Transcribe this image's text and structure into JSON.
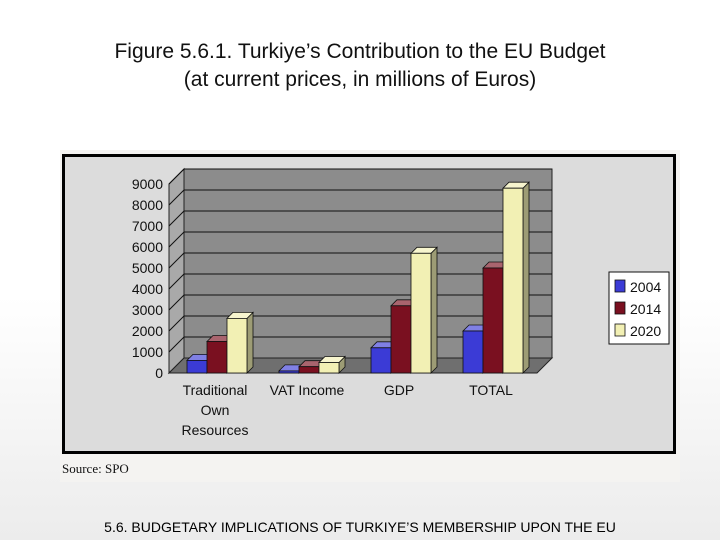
{
  "slide": {
    "title_line1": "Figure 5.6.1. Turkiye’s Contribution to the EU Budget",
    "title_line2": "(at current prices, in millions of Euros)",
    "source": "Source: SPO",
    "footer": "5.6. BUDGETARY IMPLICATIONS OF TURKIYE’S MEMBERSHIP UPON THE EU"
  },
  "chart_data": {
    "type": "bar",
    "categories": [
      [
        "Traditional",
        "Own",
        "Resources"
      ],
      [
        "VAT Income"
      ],
      [
        "GDP"
      ],
      [
        "TOTAL"
      ]
    ],
    "series": [
      {
        "name": "2004",
        "values": [
          600,
          100,
          1200,
          2000
        ],
        "color": "#3b3bd6"
      },
      {
        "name": "2014",
        "values": [
          1500,
          300,
          3200,
          5000
        ],
        "color": "#7a1020"
      },
      {
        "name": "2020",
        "values": [
          2600,
          500,
          5700,
          8800
        ],
        "color": "#f2f0b4"
      }
    ],
    "ylim": [
      0,
      9000
    ],
    "yticks": [
      0,
      1000,
      2000,
      3000,
      4000,
      5000,
      6000,
      7000,
      8000,
      9000
    ],
    "grid": true,
    "legend": "right",
    "colors": {
      "plot_wall": "#8c8c8c",
      "chart_bg": "#dcdcdc",
      "frame": "#000000"
    }
  }
}
